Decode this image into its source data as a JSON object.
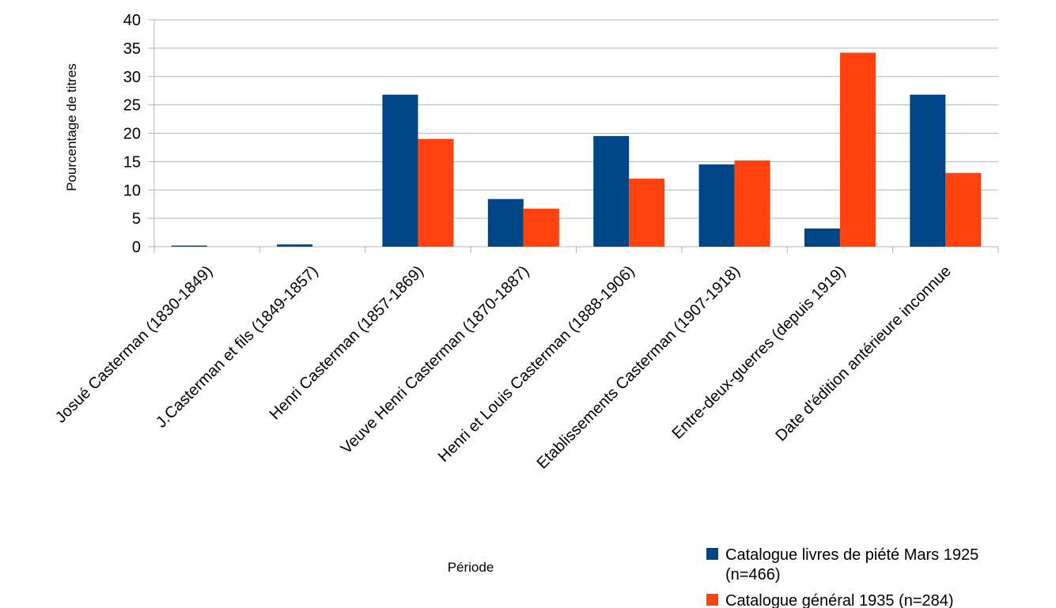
{
  "chart_data": {
    "type": "bar",
    "xlabel": "Période",
    "ylabel": "Pourcentage de titres",
    "ylim": [
      0,
      40
    ],
    "yticks": [
      0,
      5,
      10,
      15,
      20,
      25,
      30,
      35,
      40
    ],
    "grid": true,
    "legend_position": "bottom-right",
    "categories": [
      "Josué Casterman (1830-1849)",
      "J.Casterman et fils (1849-1857)",
      "Henri Casterman (1857-1869)",
      "Veuve Henri Casterman (1870-1887)",
      "Henri et Louis Casterman (1888-1906)",
      "Etablissements Casterman (1907-1918)",
      "Entre-deux-guerres (depuis 1919)",
      "Date d'édition antérieure inconnue"
    ],
    "series": [
      {
        "name": "Catalogue livres de piété Mars 1925 (n=466)",
        "legend_lines": [
          "Catalogue livres de piété Mars 1925",
          "(n=466)"
        ],
        "color": "#004586",
        "values": [
          0.2,
          0.4,
          26.8,
          8.4,
          19.5,
          14.5,
          3.2,
          26.8
        ]
      },
      {
        "name": "Catalogue général 1935 (n=284)",
        "legend_lines": [
          "Catalogue général 1935 (n=284)"
        ],
        "color": "#ff420e",
        "values": [
          0,
          0,
          19.0,
          6.7,
          12.0,
          15.2,
          34.2,
          13.0
        ]
      }
    ]
  }
}
